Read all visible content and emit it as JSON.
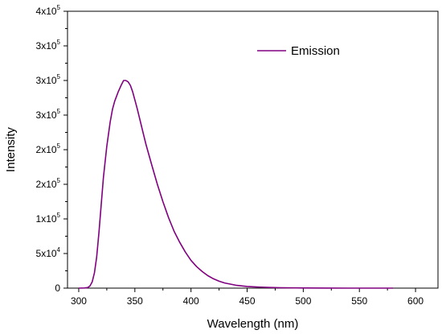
{
  "chart_data": {
    "type": "line",
    "xlabel": "Wavelength (nm)",
    "ylabel": "Intensity",
    "xlim": [
      290,
      620
    ],
    "ylim": [
      0,
      400000
    ],
    "x_ticks": [
      300,
      350,
      400,
      450,
      500,
      550,
      600
    ],
    "x_tick_labels": [
      "300",
      "350",
      "400",
      "450",
      "500",
      "550",
      "600"
    ],
    "y_ticks": [
      0,
      50000,
      100000,
      150000,
      200000,
      250000,
      300000,
      350000,
      400000
    ],
    "y_tick_labels": [
      {
        "base": "0",
        "exp": ""
      },
      {
        "base": "5x10",
        "exp": "4"
      },
      {
        "base": "1x10",
        "exp": "5"
      },
      {
        "base": "2x10",
        "exp": "5"
      },
      {
        "base": "2x10",
        "exp": "5"
      },
      {
        "base": "3x10",
        "exp": "5"
      },
      {
        "base": "3x10",
        "exp": "5"
      },
      {
        "base": "3x10",
        "exp": "5"
      },
      {
        "base": "4x10",
        "exp": "5"
      }
    ],
    "legend_position": "top-right",
    "series": [
      {
        "name": "Emission",
        "color": "#800080",
        "x": [
          300,
          305,
          308,
          310,
          312,
          314,
          316,
          318,
          320,
          322,
          325,
          328,
          330,
          332,
          335,
          338,
          340,
          342,
          344,
          346,
          348,
          350,
          352,
          355,
          358,
          360,
          365,
          370,
          375,
          380,
          385,
          390,
          395,
          400,
          405,
          410,
          415,
          420,
          425,
          430,
          440,
          450,
          460,
          470,
          480,
          500,
          520,
          540,
          560,
          580
        ],
        "y": [
          0,
          200,
          800,
          3000,
          9000,
          22000,
          45000,
          80000,
          120000,
          160000,
          205000,
          240000,
          258000,
          270000,
          283000,
          294000,
          300000,
          300000,
          298000,
          293000,
          284000,
          272000,
          260000,
          240000,
          220000,
          207000,
          178000,
          150000,
          125000,
          102000,
          82000,
          66000,
          52000,
          40000,
          31000,
          24000,
          18000,
          13500,
          10000,
          7500,
          4200,
          2400,
          1500,
          900,
          550,
          250,
          100,
          50,
          20,
          0
        ]
      }
    ]
  }
}
